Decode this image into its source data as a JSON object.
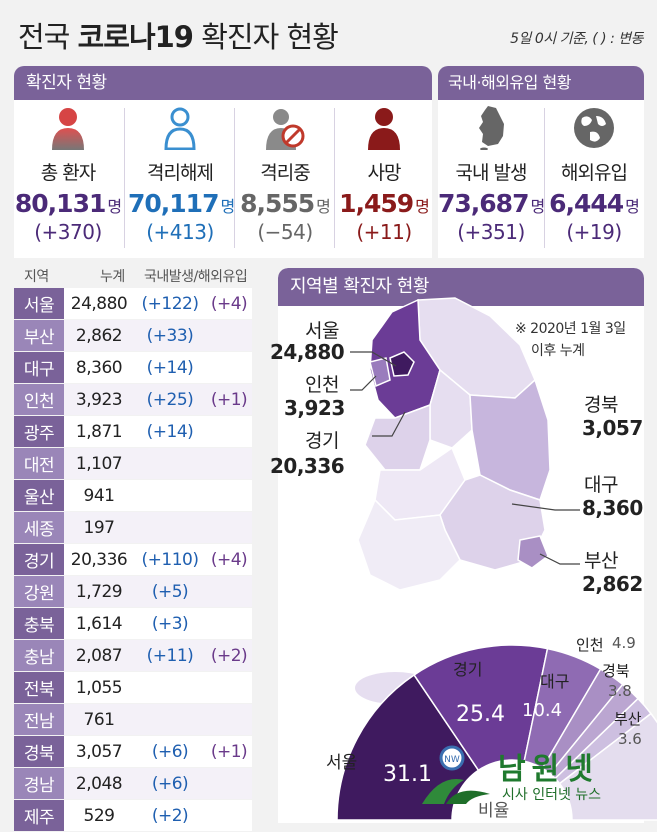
{
  "header": {
    "title_pre": "전국",
    "title_bold": "코로나19",
    "title_post": "확진자 현황",
    "basis_note": "5일 0시 기준, ( ) : 변동"
  },
  "status": {
    "title": "확진자 현황",
    "unit": "명",
    "cards": [
      {
        "label": "총 환자",
        "value": "80,131",
        "change": "(+370)"
      },
      {
        "label": "격리해제",
        "value": "70,117",
        "change": "(+413)"
      },
      {
        "label": "격리중",
        "value": "8,555",
        "change": "(−54)"
      },
      {
        "label": "사망",
        "value": "1,459",
        "change": "(+11)"
      }
    ]
  },
  "origin": {
    "title": "국내·해외유입 현황",
    "unit": "명",
    "cards": [
      {
        "label": "국내 발생",
        "value": "73,687",
        "change": "(+351)"
      },
      {
        "label": "해외유입",
        "value": "6,444",
        "change": "(+19)"
      }
    ]
  },
  "regions_table": {
    "headers": {
      "region": "지역",
      "total": "누계",
      "domestic_import": "국내발생/해외유입"
    },
    "rows": [
      {
        "name": "서울",
        "total": "24,880",
        "domestic": "(+122)",
        "imported": "(+4)"
      },
      {
        "name": "부산",
        "total": "2,862",
        "domestic": "(+33)",
        "imported": ""
      },
      {
        "name": "대구",
        "total": "8,360",
        "domestic": "(+14)",
        "imported": ""
      },
      {
        "name": "인천",
        "total": "3,923",
        "domestic": "(+25)",
        "imported": "(+1)"
      },
      {
        "name": "광주",
        "total": "1,871",
        "domestic": "(+14)",
        "imported": ""
      },
      {
        "name": "대전",
        "total": "1,107",
        "domestic": "",
        "imported": ""
      },
      {
        "name": "울산",
        "total": "941",
        "domestic": "",
        "imported": ""
      },
      {
        "name": "세종",
        "total": "197",
        "domestic": "",
        "imported": ""
      },
      {
        "name": "경기",
        "total": "20,336",
        "domestic": "(+110)",
        "imported": "(+4)"
      },
      {
        "name": "강원",
        "total": "1,729",
        "domestic": "(+5)",
        "imported": ""
      },
      {
        "name": "충북",
        "total": "1,614",
        "domestic": "(+3)",
        "imported": ""
      },
      {
        "name": "충남",
        "total": "2,087",
        "domestic": "(+11)",
        "imported": "(+2)"
      },
      {
        "name": "전북",
        "total": "1,055",
        "domestic": "",
        "imported": ""
      },
      {
        "name": "전남",
        "total": "761",
        "domestic": "",
        "imported": ""
      },
      {
        "name": "경북",
        "total": "3,057",
        "domestic": "(+6)",
        "imported": "(+1)"
      },
      {
        "name": "경남",
        "total": "2,048",
        "domestic": "(+6)",
        "imported": ""
      },
      {
        "name": "제주",
        "total": "529",
        "domestic": "(+2)",
        "imported": ""
      }
    ]
  },
  "map": {
    "title": "지역별 확진자 현황",
    "note_line1": "※ 2020년 1월 3일",
    "note_line2": "이후 누계",
    "labels": {
      "seoul": {
        "name": "서울",
        "value": "24,880"
      },
      "incheon": {
        "name": "인천",
        "value": "3,923"
      },
      "gyeonggi": {
        "name": "경기",
        "value": "20,336"
      },
      "gyeongbuk": {
        "name": "경북",
        "value": "3,057"
      },
      "daegu": {
        "name": "대구",
        "value": "8,360"
      },
      "busan": {
        "name": "부산",
        "value": "2,862"
      }
    }
  },
  "ratio": {
    "label": "비율",
    "slices": [
      {
        "name": "서울",
        "value": 31.1,
        "color": "#3f1a5f"
      },
      {
        "name": "경기",
        "value": 25.4,
        "color": "#6b3c96"
      },
      {
        "name": "대구",
        "value": 10.4,
        "color": "#8f6bb3"
      },
      {
        "name": "인천",
        "value": 4.9,
        "color": "#a98fc4"
      },
      {
        "name": "경북",
        "value": 3.8,
        "color": "#bba6d1"
      },
      {
        "name": "부산",
        "value": 3.6,
        "color": "#cdbfe0"
      }
    ],
    "display": {
      "seoul": "31.1",
      "gyeonggi": "25.4",
      "daegu": "10.4",
      "incheon": "4.9",
      "gyeongbuk": "3.8",
      "busan": "3.6"
    }
  },
  "watermark": {
    "brand": "남원넷",
    "sub": "시사 인터넷 뉴스"
  },
  "colors": {
    "purple_header": "#7a6299",
    "total": "#4b2a78",
    "released": "#1f6fb8",
    "isolated": "#666666",
    "death": "#8a1a1a"
  }
}
